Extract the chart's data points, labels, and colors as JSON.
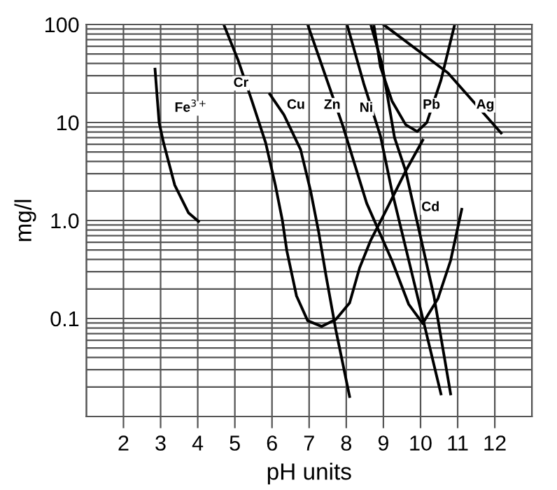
{
  "chart_data": {
    "type": "line",
    "xlabel": "pH units",
    "ylabel": "mg/l",
    "log": "y",
    "xlim": [
      1,
      13
    ],
    "xticks": [
      2,
      3,
      4,
      5,
      6,
      7,
      8,
      9,
      10,
      11,
      12
    ],
    "ylim": [
      0.01,
      100
    ],
    "yticks": [
      {
        "value": 0.01,
        "label": null
      },
      {
        "value": 0.1,
        "label": "0.1"
      },
      {
        "value": 1,
        "label": "1.0"
      },
      {
        "value": 10,
        "label": "10"
      },
      {
        "value": 100,
        "label": "100"
      }
    ],
    "grid": true,
    "marker": "none",
    "line_style": "solid",
    "series": [
      {
        "name": "Fe$^{3+}$",
        "color": "#000000",
        "x": [
          2.85,
          2.96,
          3.08,
          3.38,
          3.75,
          4.02
        ],
        "values": [
          35,
          10,
          6.2,
          2.3,
          1.2,
          0.98
        ]
      },
      {
        "name": "Cr",
        "color": "#000000",
        "x": [
          4.7,
          5.08,
          5.45,
          5.83,
          6.09,
          6.28,
          6.4,
          6.66,
          6.96,
          7.34,
          7.72,
          8.09,
          8.36,
          8.66,
          9.04,
          9.6,
          10.06
        ],
        "values": [
          100,
          44,
          17,
          6.2,
          2.3,
          1.0,
          0.49,
          0.17,
          0.095,
          0.083,
          0.098,
          0.144,
          0.33,
          0.63,
          1.2,
          3.2,
          6.6
        ]
      },
      {
        "name": "Cu",
        "color": "#000000",
        "x": [
          5.94,
          6.32,
          6.77,
          7.04,
          7.26,
          7.45,
          7.72,
          8.09
        ],
        "values": [
          19.5,
          12,
          5.3,
          2.0,
          0.75,
          0.28,
          0.076,
          0.016
        ]
      },
      {
        "name": "Zn",
        "color": "#000000",
        "x": [
          6.96,
          7.91,
          8.55,
          9.23,
          9.68,
          10.06,
          10.47,
          10.81,
          11.11
        ],
        "values": [
          100,
          9.2,
          1.5,
          0.39,
          0.14,
          0.089,
          0.16,
          0.39,
          1.3
        ]
      },
      {
        "name": "Ni",
        "color": "#000000",
        "x": [
          8.02,
          8.47,
          8.92,
          9.23,
          9.87,
          10.55
        ],
        "values": [
          100,
          25,
          7.3,
          2.0,
          0.2,
          0.017
        ]
      },
      {
        "name": "Cd",
        "color": "#000000",
        "x": [
          8.66,
          8.96,
          9.3,
          9.6,
          9.9,
          10.36,
          10.81
        ],
        "values": [
          100,
          40,
          7,
          3.2,
          1.0,
          0.17,
          0.017
        ]
      },
      {
        "name": "Pb",
        "color": "#000000",
        "x": [
          8.74,
          8.92,
          9.23,
          9.6,
          9.91,
          10.17,
          10.55,
          10.92
        ],
        "values": [
          100,
          37,
          16.6,
          9.5,
          8.1,
          10,
          27,
          100
        ]
      },
      {
        "name": "Ag",
        "color": "#000000",
        "x": [
          9.0,
          10.74,
          12.17
        ],
        "values": [
          100,
          32,
          7.8
        ]
      }
    ]
  }
}
